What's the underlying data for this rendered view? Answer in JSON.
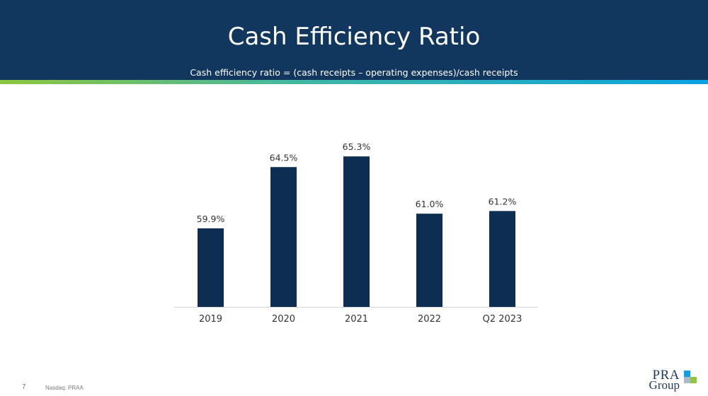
{
  "header": {
    "title": "Cash Efficiency Ratio",
    "subtitle": "Cash efficiency ratio = (cash receipts – operating expenses)/cash receipts"
  },
  "footer": {
    "page_number": "7",
    "ticker": "Nasdaq: PRAA"
  },
  "logo": {
    "line1": "PRA",
    "line2": "Group",
    "colors": [
      "#0aa3e0",
      "#8dc63f",
      "#12375e"
    ]
  },
  "colors": {
    "header_bg": "#12375e",
    "bar": "#0d2d52",
    "stripe_start": "#8dc63f",
    "stripe_end": "#0aa3e0"
  },
  "chart_data": {
    "type": "bar",
    "categories": [
      "2019",
      "2020",
      "2021",
      "2022",
      "Q2 2023"
    ],
    "values": [
      59.9,
      64.5,
      65.3,
      61.0,
      61.2
    ],
    "data_labels": [
      "59.9%",
      "64.5%",
      "65.3%",
      "61.0%",
      "61.2%"
    ],
    "ylim": [
      54,
      66
    ],
    "grid": false,
    "legend": "none",
    "title": "",
    "xlabel": "",
    "ylabel": ""
  }
}
